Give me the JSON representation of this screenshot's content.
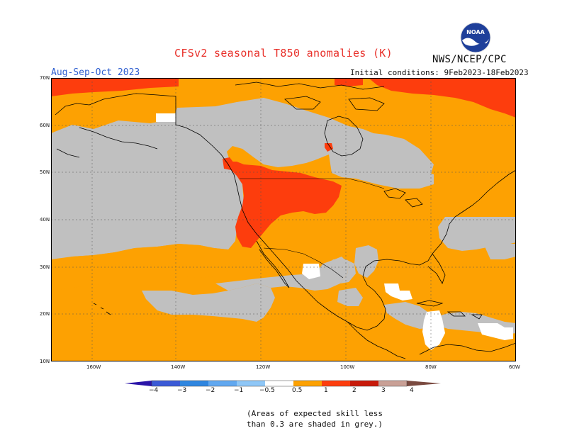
{
  "header": {
    "title": "CFSv2 seasonal T850 anomalies (K)",
    "credit": "NWS/NCEP/CPC",
    "season": "Aug-Sep-Oct 2023",
    "initial_conditions": "Initial conditions: 9Feb2023-18Feb2023",
    "logo_text": "NOAA"
  },
  "map": {
    "lat_labels": [
      "70N",
      "60N",
      "50N",
      "40N",
      "30N",
      "20N",
      "10N"
    ],
    "lon_labels": [
      "160W",
      "140W",
      "120W",
      "100W",
      "80W",
      "60W"
    ],
    "fill_colors": {
      "orange_0.5_1": "#fda102",
      "red_1_2": "#fd3d0d",
      "grey_low_skill": "#c0c0c0",
      "white_near_zero": "#ffffff"
    }
  },
  "colorbar": {
    "tick_labels": [
      "−4",
      "−3",
      "−2",
      "−1",
      "−0.5",
      "0.5",
      "1",
      "2",
      "3",
      "4"
    ],
    "colors": [
      "#2a14a8",
      "#3b5ad6",
      "#2f86e0",
      "#61a8f0",
      "#8fc7f7",
      "#ffffff",
      "#fda102",
      "#fd3d0d",
      "#c81a0a",
      "#981010",
      "#c9a096",
      "#7a4a40"
    ]
  },
  "footer": {
    "note_line1": "(Areas of expected skill less",
    "note_line2": "than 0.3 are shaded in grey.)"
  }
}
